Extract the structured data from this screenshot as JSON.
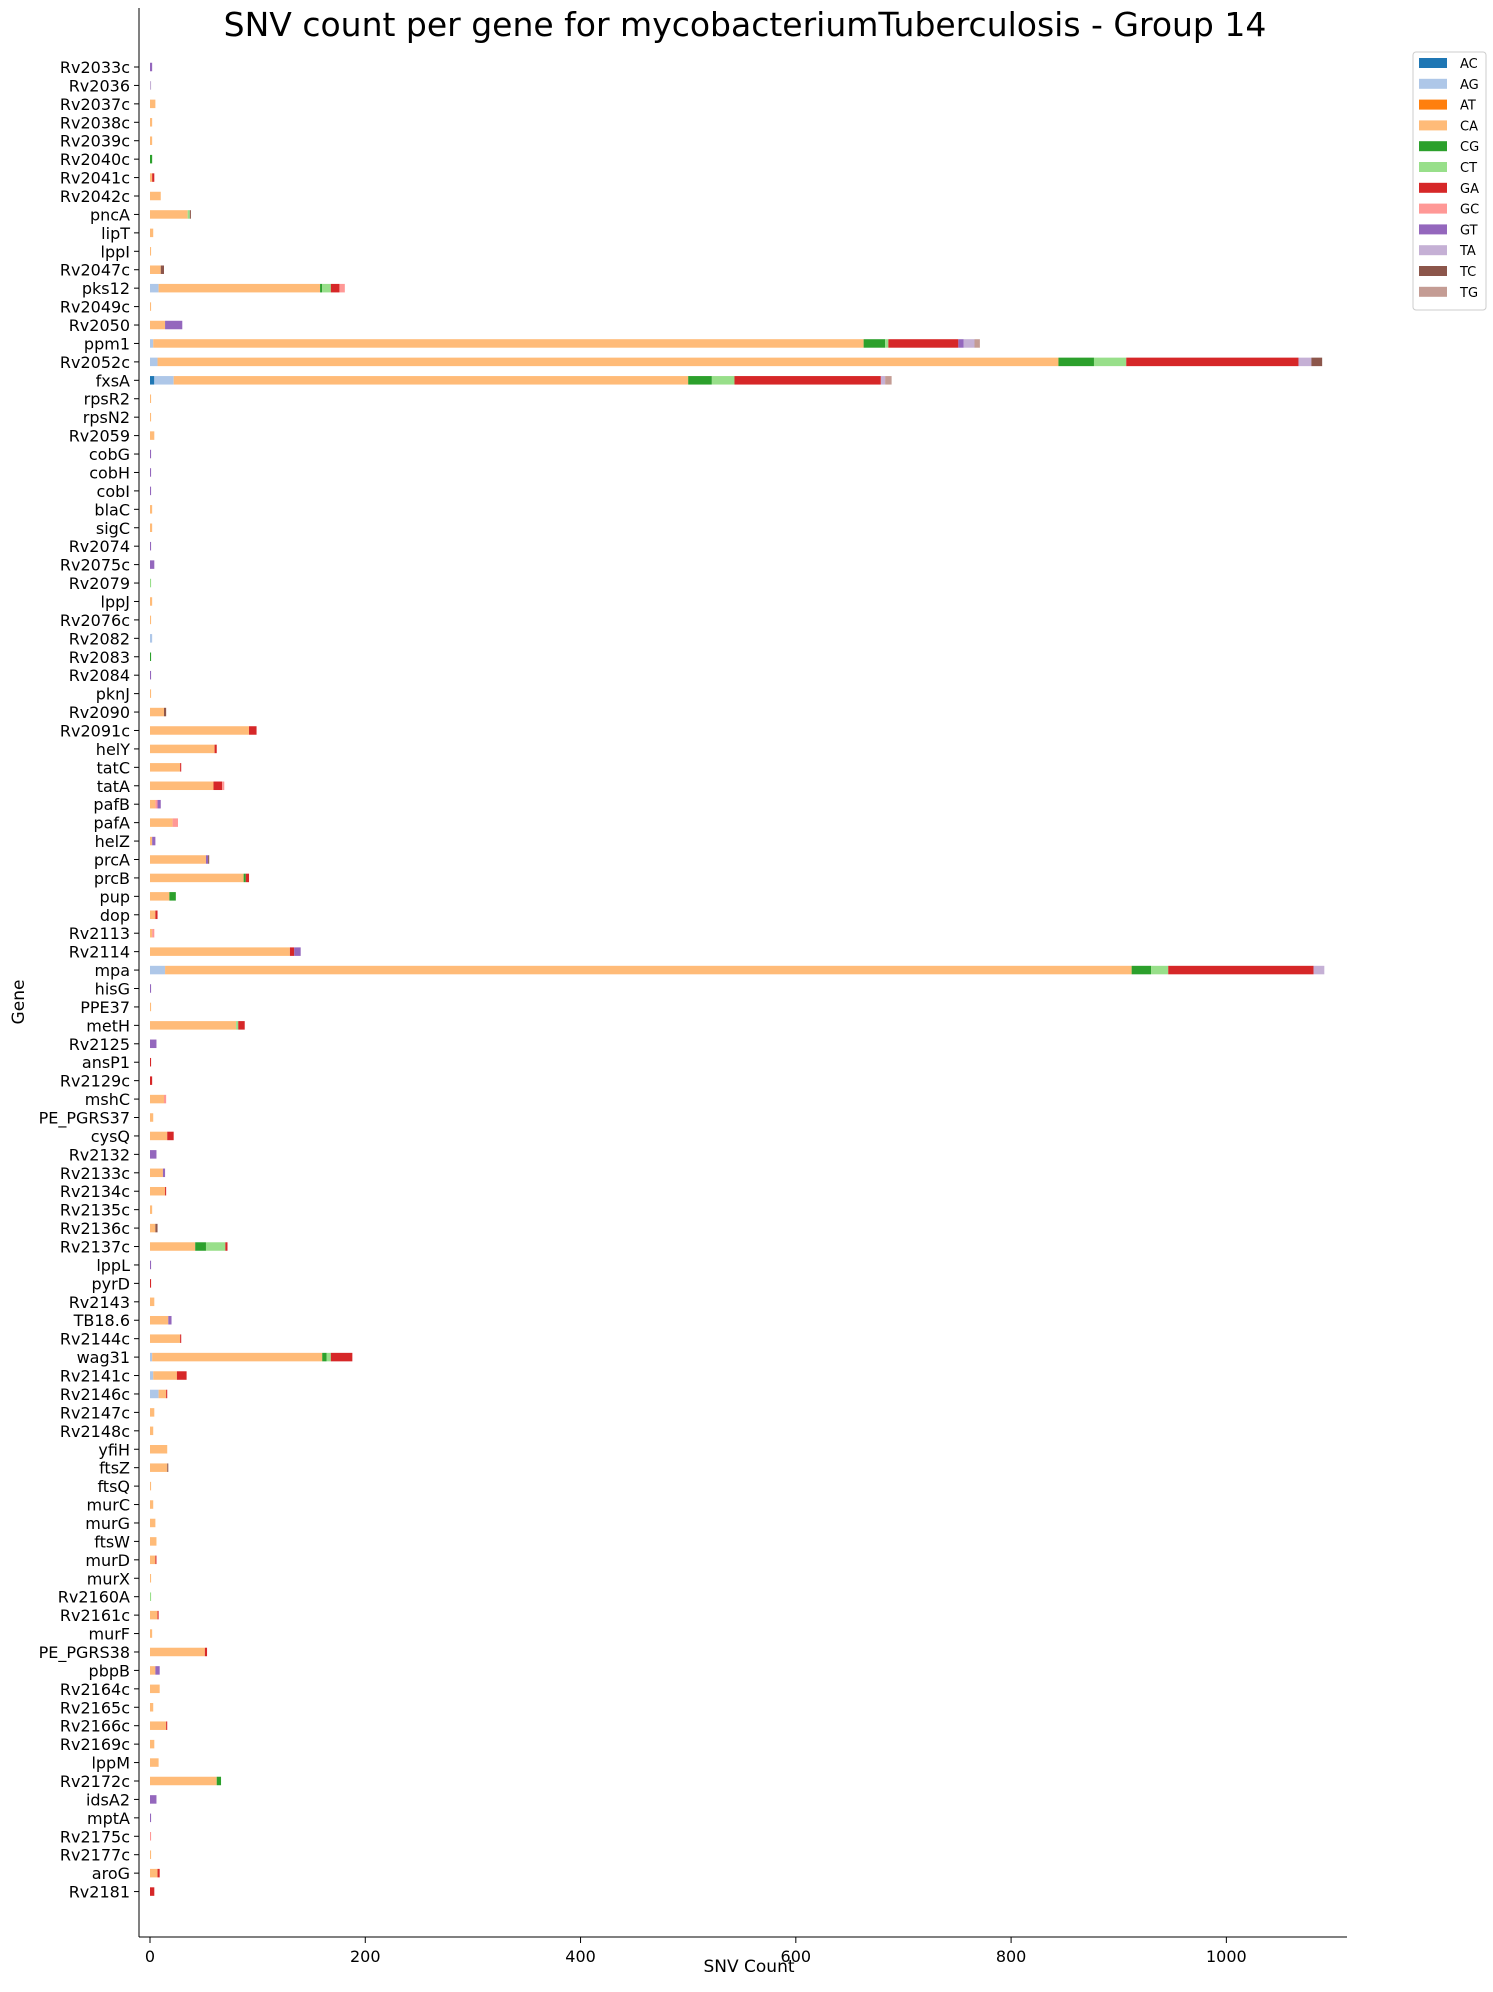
{
  "chart_data": {
    "type": "bar",
    "orientation": "horizontal",
    "stacked": true,
    "title": "SNV count per gene for mycobacteriumTuberculosis - Group 14",
    "xlabel": "SNV Count",
    "ylabel": "Gene",
    "xlim": [
      0,
      1100
    ],
    "xticks": [
      0,
      200,
      400,
      600,
      800,
      1000
    ],
    "grid": false,
    "legend_position": "top-right",
    "series_order": [
      "AC",
      "AG",
      "AT",
      "CA",
      "CG",
      "CT",
      "GA",
      "GC",
      "GT",
      "TA",
      "TC",
      "TG"
    ],
    "colors": {
      "AC": "#1f77b4",
      "AG": "#aec7e8",
      "AT": "#ff7f0e",
      "CA": "#ffbb78",
      "CG": "#2ca02c",
      "CT": "#98df8a",
      "GA": "#d62728",
      "GC": "#ff9896",
      "GT": "#9467bd",
      "TA": "#c5b0d5",
      "TC": "#8c564b",
      "TG": "#c49c94"
    },
    "categories": [
      "Rv2033c",
      "Rv2036",
      "Rv2037c",
      "Rv2038c",
      "Rv2039c",
      "Rv2040c",
      "Rv2041c",
      "Rv2042c",
      "pncA",
      "lipT",
      "lppI",
      "Rv2047c",
      "pks12",
      "Rv2049c",
      "Rv2050",
      "ppm1",
      "Rv2052c",
      "fxsA",
      "rpsR2",
      "rpsN2",
      "Rv2059",
      "cobG",
      "cobH",
      "cobI",
      "blaC",
      "sigC",
      "Rv2074",
      "Rv2075c",
      "Rv2079",
      "lppJ",
      "Rv2076c",
      "Rv2082",
      "Rv2083",
      "Rv2084",
      "pknJ",
      "Rv2090",
      "Rv2091c",
      "helY",
      "tatC",
      "tatA",
      "pafB",
      "pafA",
      "helZ",
      "prcA",
      "prcB",
      "pup",
      "dop",
      "Rv2113",
      "Rv2114",
      "mpa",
      "hisG",
      "PPE37",
      "metH",
      "Rv2125",
      "ansP1",
      "Rv2129c",
      "mshC",
      "PE_PGRS37",
      "cysQ",
      "Rv2132",
      "Rv2133c",
      "Rv2134c",
      "Rv2135c",
      "Rv2136c",
      "Rv2137c",
      "lppL",
      "pyrD",
      "Rv2143",
      "TB18.6",
      "Rv2144c",
      "wag31",
      "Rv2141c",
      "Rv2146c",
      "Rv2147c",
      "Rv2148c",
      "yfiH",
      "ftsZ",
      "ftsQ",
      "murC",
      "murG",
      "ftsW",
      "murD",
      "murX",
      "Rv2160A",
      "Rv2161c",
      "murF",
      "PE_PGRS38",
      "pbpB",
      "Rv2164c",
      "Rv2165c",
      "Rv2166c",
      "Rv2169c",
      "lppM",
      "Rv2172c",
      "idsA2",
      "mptA",
      "Rv2175c",
      "Rv2177c",
      "aroG",
      "Rv2181"
    ],
    "stacks": [
      [
        [
          "GT",
          2
        ]
      ],
      [
        [
          "TA",
          1
        ]
      ],
      [
        [
          "CA",
          5
        ]
      ],
      [
        [
          "CA",
          2
        ]
      ],
      [
        [
          "CA",
          2
        ]
      ],
      [
        [
          "CG",
          2
        ]
      ],
      [
        [
          "CA",
          2
        ],
        [
          "GA",
          2
        ]
      ],
      [
        [
          "CA",
          10
        ]
      ],
      [
        [
          "CA",
          35
        ],
        [
          "CT",
          2
        ],
        [
          "TC",
          1
        ]
      ],
      [
        [
          "CA",
          3
        ]
      ],
      [
        [
          "CA",
          1
        ]
      ],
      [
        [
          "CA",
          10
        ],
        [
          "TC",
          3
        ]
      ],
      [
        [
          "AG",
          8
        ],
        [
          "CA",
          150
        ],
        [
          "CG",
          2
        ],
        [
          "CT",
          8
        ],
        [
          "GA",
          8
        ],
        [
          "GC",
          5
        ]
      ],
      [
        [
          "CA",
          1
        ]
      ],
      [
        [
          "CA",
          14
        ],
        [
          "GT",
          16
        ]
      ],
      [
        [
          "AG",
          3
        ],
        [
          "CA",
          660
        ],
        [
          "CG",
          20
        ],
        [
          "CT",
          3
        ],
        [
          "GA",
          65
        ],
        [
          "GT",
          5
        ],
        [
          "TA",
          10
        ],
        [
          "TG",
          5
        ]
      ],
      [
        [
          "AG",
          7
        ],
        [
          "CA",
          837
        ],
        [
          "CG",
          33
        ],
        [
          "CT",
          30
        ],
        [
          "GA",
          160
        ],
        [
          "TA",
          12
        ],
        [
          "TC",
          10
        ]
      ],
      [
        [
          "AC",
          4
        ],
        [
          "AG",
          18
        ],
        [
          "CA",
          478
        ],
        [
          "CG",
          22
        ],
        [
          "CT",
          21
        ],
        [
          "GA",
          136
        ],
        [
          "TA",
          4
        ],
        [
          "TG",
          6
        ]
      ],
      [
        [
          "CA",
          1
        ]
      ],
      [
        [
          "CA",
          1
        ]
      ],
      [
        [
          "CA",
          4
        ]
      ],
      [
        [
          "GT",
          1
        ]
      ],
      [
        [
          "GT",
          1
        ]
      ],
      [
        [
          "GT",
          1
        ]
      ],
      [
        [
          "CA",
          2
        ]
      ],
      [
        [
          "CA",
          2
        ]
      ],
      [
        [
          "GT",
          1
        ]
      ],
      [
        [
          "GT",
          4
        ]
      ],
      [
        [
          "CT",
          1
        ]
      ],
      [
        [
          "CA",
          2
        ]
      ],
      [
        [
          "CA",
          1
        ]
      ],
      [
        [
          "AG",
          2
        ]
      ],
      [
        [
          "CG",
          1
        ]
      ],
      [
        [
          "GT",
          1
        ]
      ],
      [
        [
          "CA",
          1
        ]
      ],
      [
        [
          "CA",
          13
        ],
        [
          "TC",
          2
        ]
      ],
      [
        [
          "CA",
          92
        ],
        [
          "GA",
          7
        ]
      ],
      [
        [
          "CA",
          60
        ],
        [
          "GA",
          2
        ]
      ],
      [
        [
          "CA",
          28
        ],
        [
          "GA",
          1
        ]
      ],
      [
        [
          "CA",
          59
        ],
        [
          "GA",
          8
        ],
        [
          "GC",
          2
        ]
      ],
      [
        [
          "CA",
          5
        ],
        [
          "GC",
          2
        ],
        [
          "GT",
          3
        ]
      ],
      [
        [
          "CA",
          21
        ],
        [
          "GC",
          5
        ]
      ],
      [
        [
          "CA",
          2
        ],
        [
          "GT",
          3
        ]
      ],
      [
        [
          "CA",
          52
        ],
        [
          "GT",
          2
        ],
        [
          "TC",
          1
        ]
      ],
      [
        [
          "CA",
          87
        ],
        [
          "CG",
          2
        ],
        [
          "GA",
          3
        ]
      ],
      [
        [
          "CA",
          18
        ],
        [
          "CG",
          6
        ]
      ],
      [
        [
          "CA",
          5
        ],
        [
          "GA",
          2
        ]
      ],
      [
        [
          "CA",
          2
        ],
        [
          "GC",
          2
        ]
      ],
      [
        [
          "CA",
          130
        ],
        [
          "GA",
          4
        ],
        [
          "GT",
          6
        ]
      ],
      [
        [
          "AG",
          14
        ],
        [
          "CA",
          898
        ],
        [
          "CG",
          18
        ],
        [
          "CT",
          16
        ],
        [
          "GA",
          135
        ],
        [
          "TA",
          10
        ]
      ],
      [
        [
          "GT",
          1
        ]
      ],
      [
        [
          "CA",
          1
        ]
      ],
      [
        [
          "CA",
          80
        ],
        [
          "CT",
          2
        ],
        [
          "GA",
          6
        ]
      ],
      [
        [
          "GT",
          6
        ]
      ],
      [
        [
          "GA",
          1
        ]
      ],
      [
        [
          "GA",
          2
        ]
      ],
      [
        [
          "CA",
          13
        ],
        [
          "GC",
          2
        ]
      ],
      [
        [
          "CA",
          3
        ]
      ],
      [
        [
          "CA",
          16
        ],
        [
          "GA",
          6
        ]
      ],
      [
        [
          "GT",
          6
        ]
      ],
      [
        [
          "CA",
          12
        ],
        [
          "GT",
          2
        ]
      ],
      [
        [
          "CA",
          14
        ],
        [
          "GA",
          1
        ]
      ],
      [
        [
          "CA",
          2
        ]
      ],
      [
        [
          "CA",
          5
        ],
        [
          "TC",
          2
        ]
      ],
      [
        [
          "CA",
          42
        ],
        [
          "CG",
          10
        ],
        [
          "CT",
          18
        ],
        [
          "GA",
          2
        ]
      ],
      [
        [
          "GT",
          1
        ]
      ],
      [
        [
          "GA",
          1
        ]
      ],
      [
        [
          "CA",
          4
        ]
      ],
      [
        [
          "CA",
          17
        ],
        [
          "GT",
          3
        ]
      ],
      [
        [
          "CA",
          28
        ],
        [
          "GA",
          1
        ]
      ],
      [
        [
          "AG",
          2
        ],
        [
          "CA",
          158
        ],
        [
          "CG",
          4
        ],
        [
          "CT",
          4
        ],
        [
          "GA",
          20
        ]
      ],
      [
        [
          "AG",
          3
        ],
        [
          "CA",
          22
        ],
        [
          "GA",
          9
        ]
      ],
      [
        [
          "AG",
          8
        ],
        [
          "CA",
          7
        ],
        [
          "GA",
          1
        ]
      ],
      [
        [
          "CA",
          4
        ]
      ],
      [
        [
          "CA",
          3
        ]
      ],
      [
        [
          "CA",
          16
        ]
      ],
      [
        [
          "CA",
          16
        ],
        [
          "TC",
          1
        ]
      ],
      [
        [
          "CA",
          1
        ]
      ],
      [
        [
          "CA",
          3
        ]
      ],
      [
        [
          "CA",
          5
        ]
      ],
      [
        [
          "CA",
          6
        ]
      ],
      [
        [
          "CA",
          5
        ],
        [
          "GA",
          1
        ]
      ],
      [
        [
          "CA",
          1
        ]
      ],
      [
        [
          "CT",
          1
        ]
      ],
      [
        [
          "CA",
          7
        ],
        [
          "GA",
          1
        ]
      ],
      [
        [
          "CA",
          2
        ]
      ],
      [
        [
          "CA",
          51
        ],
        [
          "GA",
          2
        ]
      ],
      [
        [
          "CA",
          5
        ],
        [
          "GT",
          4
        ]
      ],
      [
        [
          "CA",
          9
        ]
      ],
      [
        [
          "CA",
          3
        ]
      ],
      [
        [
          "CA",
          15
        ],
        [
          "GA",
          1
        ]
      ],
      [
        [
          "CA",
          4
        ]
      ],
      [
        [
          "CA",
          8
        ]
      ],
      [
        [
          "CA",
          62
        ],
        [
          "CG",
          4
        ]
      ],
      [
        [
          "GT",
          6
        ]
      ],
      [
        [
          "GT",
          1
        ]
      ],
      [
        [
          "GC",
          1
        ]
      ],
      [
        [
          "CA",
          1
        ]
      ],
      [
        [
          "CA",
          7
        ],
        [
          "GA",
          2
        ]
      ],
      [
        [
          "GA",
          4
        ]
      ]
    ]
  }
}
